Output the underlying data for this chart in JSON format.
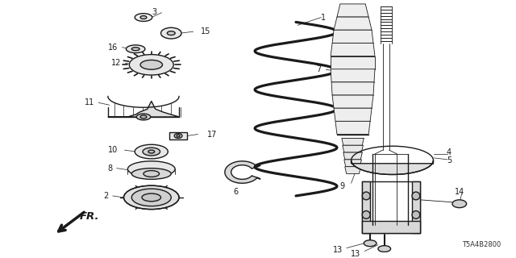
{
  "background_color": "#ffffff",
  "diagram_code": "T5A4B2800",
  "fr_label": "FR.",
  "line_color": "#1a1a1a",
  "label_fontsize": 7,
  "dpi": 100,
  "fig_w": 6.4,
  "fig_h": 3.2
}
